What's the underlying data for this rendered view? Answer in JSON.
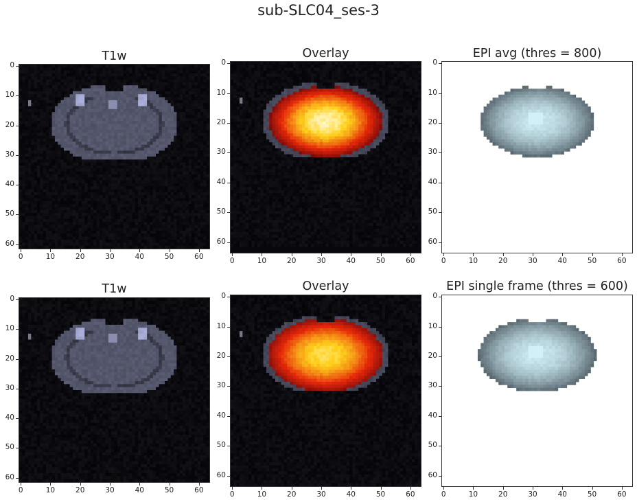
{
  "figure": {
    "suptitle": "sub-SLC04_ses-3"
  },
  "panels": [
    {
      "id": "t1w-top",
      "title": "T1w",
      "kind": "t1w",
      "yticks": [
        "0",
        "10",
        "20",
        "30",
        "40",
        "50",
        "60"
      ],
      "xticks": [
        "0",
        "10",
        "20",
        "30",
        "40",
        "50",
        "60"
      ]
    },
    {
      "id": "overlay-top",
      "title": "Overlay",
      "kind": "overlay-a",
      "yticks": [
        "0",
        "10",
        "20",
        "30",
        "40",
        "50",
        "60"
      ],
      "xticks": [
        "0",
        "10",
        "20",
        "30",
        "40",
        "50",
        "60"
      ]
    },
    {
      "id": "epi-avg",
      "title": "EPI avg (thres = 800)",
      "kind": "epi-a",
      "yticks": [
        "0",
        "10",
        "20",
        "30",
        "40",
        "50",
        "60"
      ],
      "xticks": [
        "0",
        "10",
        "20",
        "30",
        "40",
        "50",
        "60"
      ]
    },
    {
      "id": "t1w-bottom",
      "title": "T1w",
      "kind": "t1w",
      "yticks": [
        "0",
        "10",
        "20",
        "30",
        "40",
        "50",
        "60"
      ],
      "xticks": [
        "0",
        "10",
        "20",
        "30",
        "40",
        "50",
        "60"
      ]
    },
    {
      "id": "overlay-bottom",
      "title": "Overlay",
      "kind": "overlay-b",
      "yticks": [
        "0",
        "10",
        "20",
        "30",
        "40",
        "50",
        "60"
      ],
      "xticks": [
        "0",
        "10",
        "20",
        "30",
        "40",
        "50",
        "60"
      ]
    },
    {
      "id": "epi-single",
      "title": "EPI single frame (thres = 600)",
      "kind": "epi-b",
      "yticks": [
        "0",
        "10",
        "20",
        "30",
        "40",
        "50",
        "60"
      ],
      "xticks": [
        "0",
        "10",
        "20",
        "30",
        "40",
        "50",
        "60"
      ]
    }
  ],
  "colors": {
    "background_dark": "#08080c",
    "t1w_tissue": "#6f7390",
    "hot_core": "#ffe15a",
    "hot_edge": "#c81e0a",
    "epi_tissue": "#a9c4c4"
  }
}
